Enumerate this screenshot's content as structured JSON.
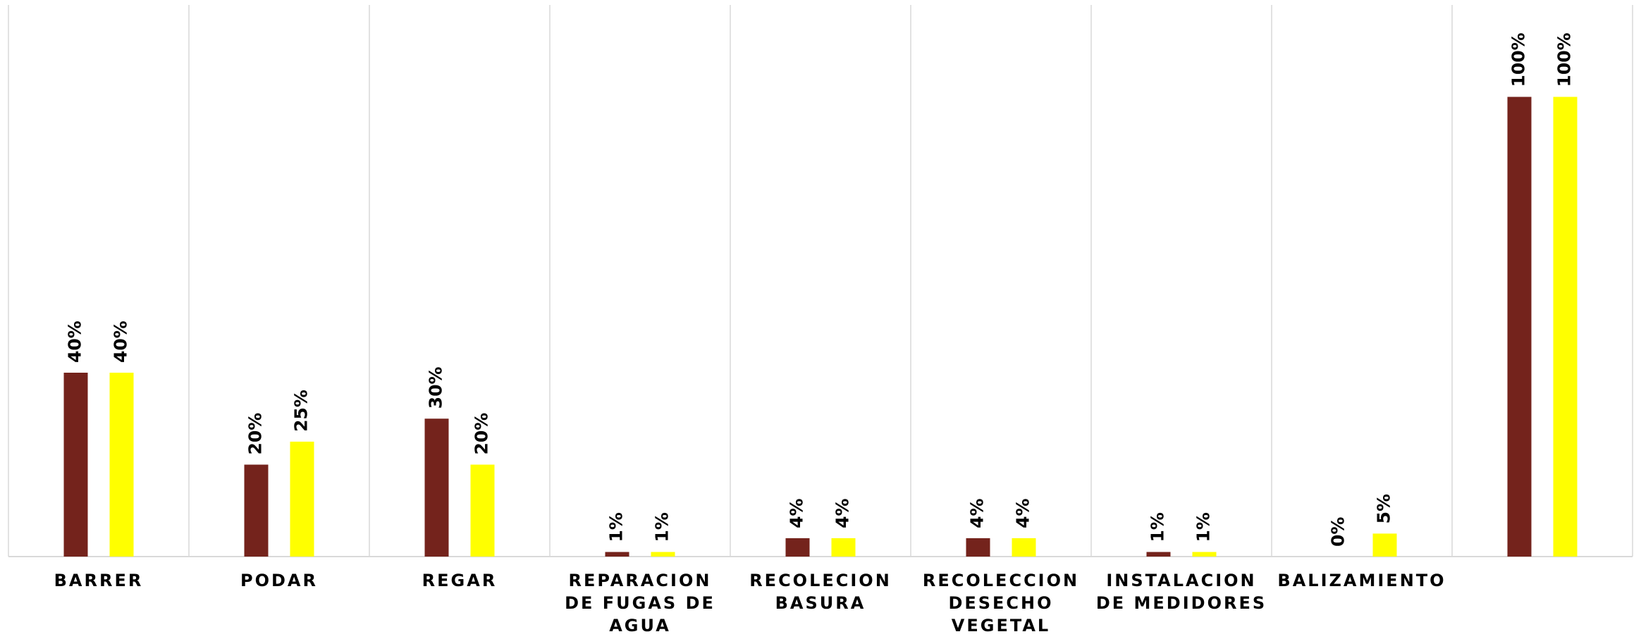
{
  "chart_data": {
    "type": "bar",
    "categories": [
      "BARRER",
      "PODAR",
      "REGAR",
      "REPARACION DE FUGAS DE AGUA",
      "RECOLECION BASURA",
      "RECOLECCION DESECHO VEGETAL",
      "INSTALACION DE MEDIDORES",
      "BALIZAMIENTO",
      null
    ],
    "series": [
      {
        "color": "#74231c",
        "values": [
          40,
          20,
          30,
          1,
          4,
          4,
          1,
          0,
          100
        ],
        "value_labels": [
          "40%",
          "20%",
          "30%",
          "1%",
          "4%",
          "4%",
          "1%",
          "0%",
          "100%"
        ]
      },
      {
        "color": "#ffff00",
        "values": [
          40,
          25,
          20,
          1,
          4,
          4,
          1,
          5,
          100
        ],
        "value_labels": [
          "40%",
          "25%",
          "20%",
          "1%",
          "4%",
          "4%",
          "1%",
          "5%",
          "100%"
        ]
      }
    ],
    "ylim": [
      0,
      120
    ]
  }
}
